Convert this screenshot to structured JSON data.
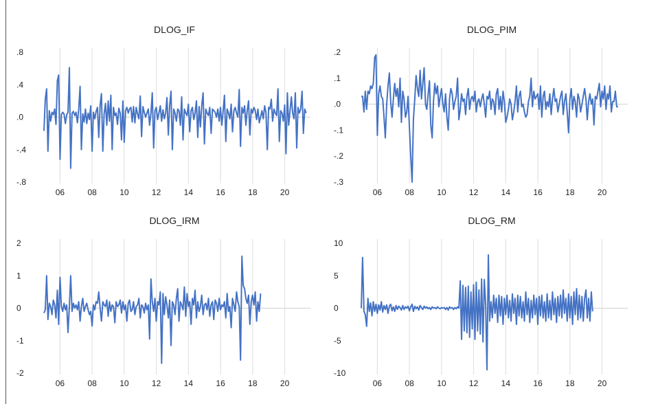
{
  "chart_data": [
    {
      "type": "line",
      "title": "DLOG_IF",
      "x_tick_labels": [
        "06",
        "08",
        "10",
        "12",
        "14",
        "16",
        "18",
        "20"
      ],
      "x_range": [
        2005.0,
        2021.6
      ],
      "ylim": [
        -0.8,
        0.8
      ],
      "y_ticks": [
        0.8,
        0.4,
        0.0,
        -0.4,
        -0.8
      ],
      "y_tick_labels": [
        ".8",
        ".4",
        ".0",
        "-.4",
        "-.8"
      ],
      "grid": "vertical",
      "series": [
        {
          "color": "#4472c4",
          "x_start": 2005.0,
          "x_step": 0.0833,
          "values": [
            -0.17,
            0.22,
            0.35,
            -0.42,
            0.08,
            -0.05,
            0.06,
            0.03,
            0.1,
            -0.09,
            0.45,
            0.52,
            -0.52,
            0.03,
            0.06,
            0.04,
            -0.08,
            0.03,
            0.06,
            0.61,
            -0.63,
            0.05,
            0.07,
            0.02,
            0.06,
            -0.07,
            0.1,
            0.38,
            -0.4,
            0.04,
            -0.06,
            0.1,
            -0.08,
            0.05,
            -0.03,
            0.14,
            -0.42,
            0.06,
            -0.02,
            0.07,
            0.12,
            -0.25,
            0.15,
            0.29,
            -0.42,
            0.04,
            0.17,
            -0.1,
            0.2,
            -0.05,
            0.27,
            -0.4,
            0.12,
            0.02,
            0.05,
            -0.09,
            0.11,
            0.05,
            -0.28,
            0.2,
            -0.31,
            0.08,
            0.12,
            0.05,
            0.1,
            0.12,
            -0.06,
            0.13,
            -0.07,
            0.12,
            0.04,
            -0.02,
            0.26,
            -0.24,
            0.13,
            0.06,
            0.0,
            0.05,
            0.1,
            -0.1,
            0.05,
            0.3,
            -0.38,
            0.08,
            0.12,
            -0.03,
            0.05,
            0.14,
            -0.05,
            0.09,
            -0.02,
            0.05,
            0.24,
            -0.22,
            0.14,
            0.32,
            -0.4,
            0.1,
            0.05,
            -0.05,
            0.1,
            0.08,
            -0.1,
            0.25,
            -0.28,
            0.1,
            0.05,
            0.02,
            0.16,
            -0.18,
            0.08,
            0.12,
            -0.03,
            0.05,
            0.2,
            -0.25,
            0.13,
            -0.12,
            0.14,
            0.3,
            -0.33,
            0.1,
            0.05,
            0.02,
            0.12,
            -0.2,
            0.1,
            0.08,
            0.06,
            0.0,
            0.1,
            -0.05,
            0.12,
            -0.1,
            0.08,
            0.27,
            -0.3,
            0.1,
            0.05,
            -0.02,
            0.16,
            -0.18,
            0.08,
            0.12,
            0.05,
            0.0,
            0.34,
            -0.36,
            0.12,
            0.05,
            0.14,
            -0.1,
            0.08,
            0.2,
            -0.22,
            0.1,
            0.05,
            0.12,
            0.08,
            -0.03,
            0.1,
            -0.07,
            0.0,
            0.08,
            -0.02,
            0.14,
            0.06,
            -0.4,
            0.12,
            0.1,
            0.22,
            -0.05,
            0.1,
            0.05,
            0.02,
            0.35,
            -0.3,
            0.08,
            0.05,
            -0.05,
            0.15,
            -0.45,
            0.3,
            -0.1,
            0.08,
            0.25,
            0.05,
            -0.02,
            0.3,
            -0.38,
            0.12,
            0.05,
            0.1,
            0.32,
            -0.2,
            0.1,
            0.05
          ]
        }
      ]
    },
    {
      "type": "line",
      "title": "DLOG_PIM",
      "x_tick_labels": [
        "06",
        "08",
        "10",
        "12",
        "14",
        "16",
        "18",
        "20"
      ],
      "x_range": [
        2005.0,
        2021.6
      ],
      "ylim": [
        -0.3,
        0.2
      ],
      "y_ticks": [
        0.2,
        0.1,
        0.0,
        -0.1,
        -0.2,
        -0.3
      ],
      "y_tick_labels": [
        ".2",
        ".1",
        ".0",
        "-.1",
        "-.2",
        "-.3"
      ],
      "grid": "vertical",
      "series": [
        {
          "color": "#4472c4",
          "x_start": 2005.0,
          "x_step": 0.0833,
          "values": [
            0.03,
            0.03,
            -0.03,
            0.05,
            -0.02,
            0.05,
            0.04,
            0.07,
            0.06,
            0.08,
            0.18,
            0.19,
            -0.12,
            0.04,
            0.07,
            0.03,
            0.02,
            -0.05,
            -0.13,
            0.0,
            0.07,
            0.12,
            0.01,
            -0.05,
            0.02,
            0.08,
            0.03,
            0.06,
            -0.01,
            0.1,
            -0.07,
            0.05,
            0.02,
            -0.05,
            -0.03,
            0.03,
            -0.09,
            -0.2,
            -0.3,
            -0.06,
            0.02,
            0.11,
            0.06,
            0.03,
            0.13,
            0.02,
            0.08,
            0.14,
            0.0,
            -0.02,
            0.04,
            0.09,
            -0.08,
            -0.13,
            0.01,
            0.08,
            0.04,
            0.07,
            -0.01,
            0.03,
            0.06,
            0.0,
            -0.03,
            0.04,
            -0.05,
            -0.1,
            0.02,
            0.06,
            0.04,
            -0.02,
            0.01,
            0.03,
            0.1,
            -0.06,
            -0.02,
            0.04,
            0.01,
            0.02,
            -0.04,
            0.03,
            0.06,
            -0.02,
            0.02,
            0.03,
            0.01,
            0.05,
            -0.03,
            0.01,
            0.02,
            -0.01,
            0.02,
            0.04,
            0.0,
            -0.05,
            0.03,
            0.02,
            0.05,
            -0.02,
            0.02,
            0.01,
            -0.04,
            0.04,
            0.06,
            -0.02,
            0.03,
            -0.03,
            0.05,
            0.01,
            -0.07,
            -0.05,
            -0.02,
            0.02,
            0.0,
            -0.06,
            -0.03,
            0.01,
            0.07,
            -0.03,
            0.03,
            0.05,
            -0.01,
            0.0,
            -0.03,
            -0.05,
            -0.04,
            0.01,
            0.03,
            0.1,
            -0.01,
            0.05,
            0.02,
            0.03,
            0.04,
            -0.02,
            0.07,
            -0.05,
            0.03,
            0.05,
            -0.02,
            0.01,
            -0.01,
            0.04,
            -0.04,
            0.02,
            0.06,
            0.01,
            0.02,
            -0.03,
            0.0,
            0.03,
            0.05,
            -0.04,
            0.01,
            0.04,
            -0.03,
            -0.11,
            0.02,
            0.06,
            -0.02,
            0.03,
            0.01,
            -0.05,
            0.04,
            0.02,
            -0.03,
            0.0,
            0.03,
            0.06,
            0.02,
            -0.06,
            0.01,
            0.04,
            0.0,
            0.02,
            -0.08,
            0.03,
            0.02,
            0.05,
            0.08,
            -0.01,
            0.05,
            0.02,
            0.07,
            -0.02,
            0.04,
            0.02,
            0.07,
            -0.03,
            0.01,
            0.01,
            0.05,
            -0.01,
            -0.01
          ]
        }
      ]
    },
    {
      "type": "line",
      "title": "DLOG_IRM",
      "x_tick_labels": [
        "06",
        "08",
        "10",
        "12",
        "14",
        "16",
        "18",
        "20"
      ],
      "x_range": [
        2005.0,
        2021.6
      ],
      "ylim": [
        -2,
        2
      ],
      "y_ticks": [
        2,
        1,
        0,
        -1,
        -2
      ],
      "y_tick_labels": [
        "2",
        "1",
        "0",
        "-1",
        "-2"
      ],
      "grid": "vertical",
      "series": [
        {
          "color": "#4472c4",
          "x_start": 2005.0,
          "x_step": 0.0833,
          "values": [
            -0.15,
            -0.05,
            1.0,
            -0.35,
            0.15,
            0.05,
            -0.2,
            0.25,
            0.1,
            -0.3,
            0.55,
            -0.5,
            0.95,
            0.05,
            -0.1,
            0.15,
            -0.05,
            0.1,
            -0.75,
            0.05,
            1.0,
            -0.1,
            0.15,
            0.0,
            0.1,
            -0.05,
            0.2,
            -0.4,
            0.05,
            0.3,
            -0.1,
            0.05,
            0.15,
            -0.05,
            -0.2,
            -0.1,
            -0.55,
            0.1,
            -0.05,
            0.2,
            0.15,
            0.5,
            0.0,
            -0.4,
            0.2,
            0.1,
            0.05,
            0.25,
            -0.25,
            0.2,
            -0.1,
            0.1,
            0.05,
            -0.45,
            0.2,
            0.05,
            0.1,
            0.25,
            -0.15,
            0.2,
            -0.05,
            0.1,
            -0.4,
            0.15,
            0.25,
            -0.1,
            -0.05,
            0.2,
            -0.2,
            0.05,
            0.1,
            0.3,
            -0.3,
            0.1,
            0.05,
            -0.15,
            0.15,
            -0.05,
            0.1,
            -0.95,
            0.9,
            0.2,
            -0.1,
            0.3,
            -0.4,
            0.2,
            0.1,
            0.5,
            -1.7,
            0.45,
            -0.2,
            0.35,
            0.1,
            -0.3,
            0.25,
            -1.15,
            0.2,
            0.1,
            -0.2,
            0.3,
            0.6,
            -0.4,
            0.2,
            0.1,
            -0.05,
            0.65,
            -0.25,
            0.45,
            0.05,
            0.2,
            -0.5,
            0.3,
            0.1,
            0.55,
            -0.3,
            0.2,
            -0.1,
            0.05,
            0.4,
            -0.2,
            0.1,
            0.15,
            -0.05,
            0.3,
            -0.25,
            0.1,
            0.2,
            -0.35,
            0.25,
            0.15,
            -0.1,
            0.3,
            -0.05,
            0.1,
            0.05,
            0.2,
            -0.3,
            0.45,
            -0.1,
            0.05,
            -0.6,
            0.3,
            0.1,
            -0.1,
            0.5,
            0.2,
            0.05,
            -1.6,
            1.6,
            0.7,
            0.6,
            0.3,
            0.15,
            0.4,
            -0.5,
            0.2,
            0.4,
            0.1,
            0.5,
            -0.4,
            0.2,
            -0.1,
            0.45
          ]
        }
      ]
    },
    {
      "type": "line",
      "title": "DLOG_RM",
      "x_tick_labels": [
        "06",
        "08",
        "10",
        "12",
        "14",
        "16",
        "18",
        "20"
      ],
      "x_range": [
        2005.0,
        2021.6
      ],
      "ylim": [
        -10,
        10
      ],
      "y_ticks": [
        10,
        5,
        0,
        -5,
        -10
      ],
      "y_tick_labels": [
        "10",
        "5",
        "0",
        "-5",
        "-10"
      ],
      "grid": "vertical",
      "series": [
        {
          "color": "#4472c4",
          "x_start": 2005.0,
          "x_step": 0.0833,
          "values": [
            0.0,
            7.8,
            -0.5,
            -1.0,
            -2.8,
            1.5,
            -0.5,
            0.8,
            -1.2,
            1.0,
            -0.5,
            0.6,
            -0.8,
            0.5,
            -0.3,
            1.0,
            -0.6,
            0.4,
            -0.2,
            0.5,
            -0.8,
            0.3,
            0.6,
            -0.4,
            0.2,
            -0.5,
            0.4,
            -0.2,
            0.3,
            0.1,
            -0.3,
            0.4,
            -0.2,
            0.2,
            0.0,
            0.3,
            -0.4,
            0.2,
            0.6,
            -0.5,
            0.3,
            -0.1,
            0.2,
            -0.3,
            0.4,
            0.1,
            -0.2,
            0.3,
            0.0,
            0.2,
            -0.1,
            0.1,
            -0.2,
            0.2,
            0.0,
            0.1,
            -0.1,
            0.2,
            0.0,
            -0.1,
            0.1,
            0.0,
            0.1,
            -0.2,
            0.1,
            -0.3,
            0.2,
            0.0,
            0.1,
            -0.2,
            0.1,
            -0.1,
            0.2,
            0.0,
            4.2,
            -4.8,
            3.5,
            -3.5,
            3.2,
            -3.8,
            3.4,
            -4.5,
            2.5,
            -3.2,
            3.6,
            -4.8,
            4.0,
            -3.5,
            2.8,
            -4.0,
            4.5,
            -5.2,
            4.4,
            0.5,
            -9.5,
            8.2,
            -2.0,
            1.0,
            -1.5,
            2.0,
            -0.8,
            1.5,
            -2.2,
            2.0,
            -1.2,
            1.8,
            -2.5,
            1.5,
            -1.0,
            2.0,
            -1.5,
            1.2,
            -2.0,
            2.2,
            -0.8,
            1.5,
            -2.5,
            2.0,
            -1.2,
            1.8,
            -1.5,
            1.0,
            -2.0,
            2.5,
            -1.0,
            1.5,
            -2.2,
            1.2,
            -1.5,
            2.0,
            -1.0,
            1.5,
            -2.5,
            1.8,
            -1.2,
            2.0,
            -1.5,
            1.0,
            -2.0,
            2.2,
            -1.5,
            1.2,
            -1.8,
            2.5,
            -1.0,
            1.5,
            -2.2,
            1.8,
            -1.2,
            2.0,
            -1.5,
            2.8,
            -0.8,
            1.5,
            -2.0,
            2.2,
            -1.5,
            1.8,
            -2.5,
            2.5,
            -1.0,
            3.0,
            -1.8,
            2.0,
            -1.5,
            1.8,
            -2.0,
            1.5,
            2.8,
            -1.5,
            1.5,
            -2.0,
            2.5,
            -0.5
          ]
        }
      ]
    }
  ]
}
